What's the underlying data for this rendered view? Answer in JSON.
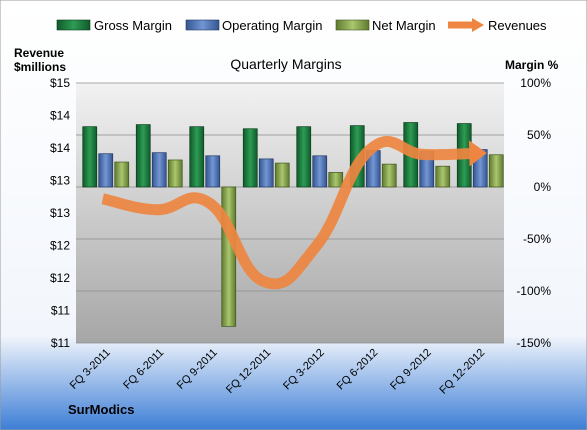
{
  "chart_data": {
    "type": "bar",
    "title": "Quarterly Margins",
    "left_axis_label_line1": "Revenue",
    "left_axis_label_line2": "$millions",
    "right_axis_label": "Margin %",
    "footer": "SurModics",
    "categories": [
      "FQ 3-2011",
      "FQ 6-2011",
      "FQ 9-2011",
      "FQ 12-2011",
      "FQ 3-2012",
      "FQ 6-2012",
      "FQ 9-2012",
      "FQ 12-2012"
    ],
    "left_ticks": [
      "$15",
      "$14",
      "$14",
      "$13",
      "$13",
      "$12",
      "$12",
      "$11",
      "$11"
    ],
    "right_ticks": [
      "100%",
      "50%",
      "0%",
      "-50%",
      "-100%",
      "-150%"
    ],
    "right_ylim": [
      -150,
      100
    ],
    "left_ylim": [
      11,
      15
    ],
    "grid": true,
    "legend_position": "top",
    "series": [
      {
        "name": "Gross Margin",
        "axis": "right",
        "color": "#1f7a3f",
        "values": [
          58,
          60,
          58,
          56,
          58,
          59,
          62,
          61
        ]
      },
      {
        "name": "Operating Margin",
        "axis": "right",
        "color": "#4f74b8",
        "values": [
          32,
          33,
          30,
          27,
          30,
          35,
          34,
          36
        ]
      },
      {
        "name": "Net Margin",
        "axis": "right",
        "color": "#8aa84f",
        "values": [
          24,
          26,
          -134,
          23,
          14,
          22,
          20,
          31
        ]
      },
      {
        "name": "Revenues",
        "axis": "left",
        "color": "#ee8540",
        "values": [
          13.22,
          13.05,
          13.15,
          11.95,
          12.5,
          13.98,
          13.9,
          13.92
        ]
      }
    ]
  }
}
